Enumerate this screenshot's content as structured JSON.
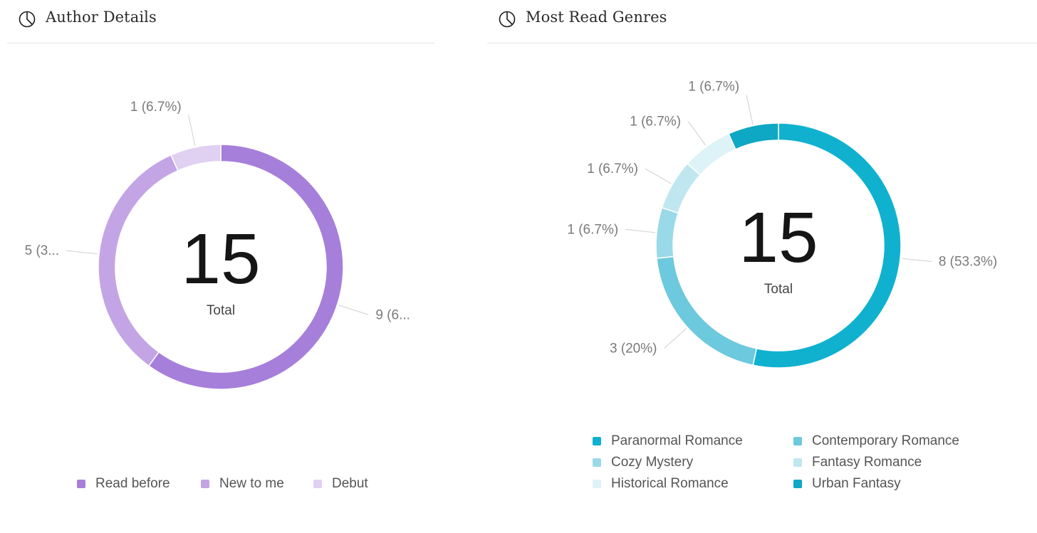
{
  "panels": [
    {
      "title": "Author Details",
      "icon": "pie-chart-icon",
      "center_value": "15",
      "center_label": "Total"
    },
    {
      "title": "Most Read Genres",
      "icon": "pie-chart-icon",
      "center_value": "15",
      "center_label": "Total"
    }
  ],
  "chart_data": [
    {
      "type": "pie",
      "variant": "donut",
      "title": "Author Details",
      "total": 15,
      "categories": [
        "Read before",
        "New to me",
        "Debut"
      ],
      "values": [
        9,
        5,
        1
      ],
      "slice_labels": [
        "9 (6...",
        "5 (3...",
        "1 (6.7%)"
      ],
      "colors": [
        "#a67fda",
        "#c3a5e6",
        "#e0d0f2"
      ],
      "legend_position": "bottom"
    },
    {
      "type": "pie",
      "variant": "donut",
      "title": "Most Read Genres",
      "total": 15,
      "categories": [
        "Paranormal Romance",
        "Contemporary Romance",
        "Cozy Mystery",
        "Fantasy Romance",
        "Historical Romance",
        "Urban Fantasy"
      ],
      "values": [
        8,
        3,
        1,
        1,
        1,
        1
      ],
      "slice_labels": [
        "8 (53.3%)",
        "3 (20%)",
        "1 (6.7%)",
        "1 (6.7%)",
        "1 (6.7%)",
        "1 (6.7%)"
      ],
      "colors": [
        "#0fb1cf",
        "#6dc9dd",
        "#9ad9e7",
        "#c0e7ef",
        "#def3f7",
        "#0ea7c4"
      ],
      "legend_position": "bottom"
    }
  ]
}
